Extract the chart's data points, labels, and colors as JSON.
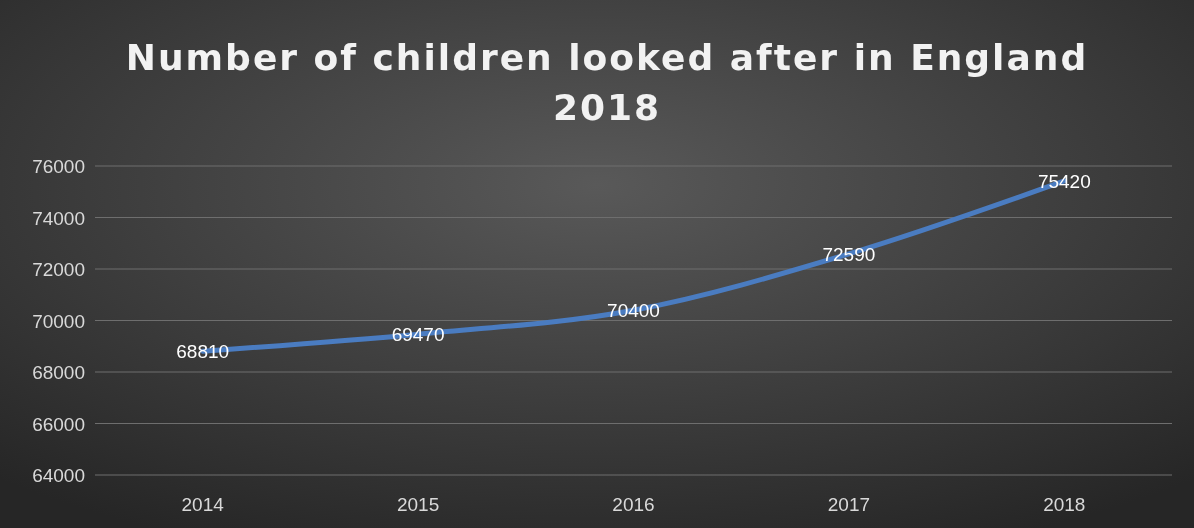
{
  "chart_data": {
    "type": "line",
    "title": "Number of children looked after in England 2018",
    "categories": [
      "2014",
      "2015",
      "2016",
      "2017",
      "2018"
    ],
    "series": [
      {
        "color": "#4a7cc1",
        "values": [
          68810,
          69470,
          70400,
          72590,
          75420
        ]
      }
    ],
    "ylim": [
      64000,
      76000
    ],
    "yticks": [
      64000,
      66000,
      68000,
      70000,
      72000,
      74000,
      76000
    ],
    "grid": "y",
    "data_labels": true,
    "marker": "none",
    "line_style": "solid"
  }
}
